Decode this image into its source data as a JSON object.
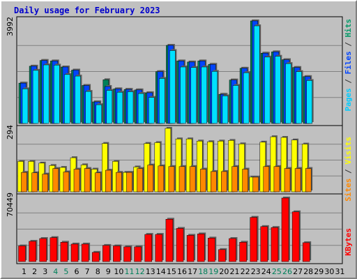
{
  "title": "Daily usage for February 2023",
  "panels": {
    "top": {
      "max_label": "3992",
      "axis_labels": [
        {
          "text": "Pages",
          "color": "#00ccff"
        },
        {
          "text": " / ",
          "color": "#333333"
        },
        {
          "text": "Files",
          "color": "#0044ff"
        },
        {
          "text": " / ",
          "color": "#333333"
        },
        {
          "text": "Hits",
          "color": "#009966"
        }
      ]
    },
    "middle": {
      "max_label": "294",
      "axis_labels": [
        {
          "text": "Sites",
          "color": "#ff8800"
        },
        {
          "text": " / ",
          "color": "#333333"
        },
        {
          "text": "Visits",
          "color": "#ffff00"
        }
      ]
    },
    "bottom": {
      "max_label": "70449",
      "axis_labels": [
        {
          "text": "KBytes",
          "color": "#ff0000"
        }
      ]
    }
  },
  "colors": {
    "hits": "#00805a",
    "files": "#0044ff",
    "pages": "#00e0ff",
    "visits": "#ffff00",
    "sites": "#ff8800",
    "kbytes": "#ff0000",
    "weekday_label": "#000000",
    "weekend_label": "#00805a"
  },
  "chart_data": {
    "type": "bar",
    "x": [
      "1",
      "2",
      "3",
      "4",
      "5",
      "6",
      "7",
      "8",
      "9",
      "10",
      "11",
      "12",
      "13",
      "14",
      "15",
      "16",
      "17",
      "18",
      "19",
      "20",
      "21",
      "22",
      "23",
      "24",
      "25",
      "26",
      "27",
      "28",
      "29",
      "30",
      "31"
    ],
    "weekend_days": [
      "4",
      "5",
      "11",
      "12",
      "18",
      "19",
      "25",
      "26"
    ],
    "panels": [
      {
        "name": "hits-files-pages",
        "max": 3992,
        "series": [
          {
            "name": "Hits",
            "key": "hits",
            "values": [
              1550,
              2200,
              2420,
              2400,
              2170,
              2050,
              1460,
              830,
              1680,
              1330,
              1310,
              1290,
              1180,
              1990,
              3000,
              2400,
              2360,
              2400,
              2270,
              1120,
              1670,
              2120,
              3940,
              2700,
              2750,
              2450,
              2150,
              1800,
              0,
              0,
              0
            ]
          },
          {
            "name": "Files",
            "key": "files",
            "values": [
              1550,
              2200,
              2420,
              2400,
              2170,
              2050,
              1460,
              830,
              1420,
              1330,
              1310,
              1290,
              1180,
              1990,
              3000,
              2400,
              2360,
              2400,
              2270,
              1120,
              1670,
              2120,
              3940,
              2700,
              2750,
              2450,
              2150,
              1800,
              0,
              0,
              0
            ]
          },
          {
            "name": "Pages",
            "key": "pages",
            "values": [
              1330,
              2040,
              2250,
              2240,
              1880,
              1820,
              1230,
              720,
              1270,
              1200,
              1220,
              1150,
              1000,
              1730,
              2800,
              2170,
              2150,
              2170,
              2000,
              1060,
              1460,
              1950,
              3750,
              2550,
              2580,
              2300,
              1990,
              1650,
              0,
              0,
              0
            ]
          }
        ]
      },
      {
        "name": "visits-sites",
        "max": 294,
        "series": [
          {
            "name": "Visits",
            "key": "visits",
            "values": [
              141,
              141,
              133,
              122,
              113,
              158,
              125,
              105,
              224,
              141,
              90,
              115,
              224,
              228,
              294,
              245,
              245,
              235,
              232,
              235,
              238,
              222,
              68,
              230,
              255,
              252,
              240,
              221,
              0,
              0,
              0
            ]
          },
          {
            "name": "Sites",
            "key": "sites",
            "values": [
              90,
              88,
              82,
              108,
              92,
              105,
              108,
              88,
              100,
              90,
              90,
              108,
              124,
              120,
              117,
              117,
              117,
              105,
              94,
              94,
              117,
              105,
              68,
              117,
              117,
              108,
              108,
              108,
              0,
              0,
              0
            ]
          }
        ]
      },
      {
        "name": "kbytes",
        "max": 70449,
        "series": [
          {
            "name": "KBytes",
            "key": "kbytes",
            "values": [
              17000,
              22000,
              25000,
              26000,
              21000,
              19000,
              19000,
              10000,
              17500,
              17000,
              16000,
              16000,
              29500,
              29500,
              46000,
              36000,
              28500,
              30000,
              25500,
              13000,
              25000,
              21000,
              48000,
              38000,
              37000,
              69000,
              54000,
              20500,
              0,
              0,
              0
            ]
          }
        ]
      }
    ]
  }
}
